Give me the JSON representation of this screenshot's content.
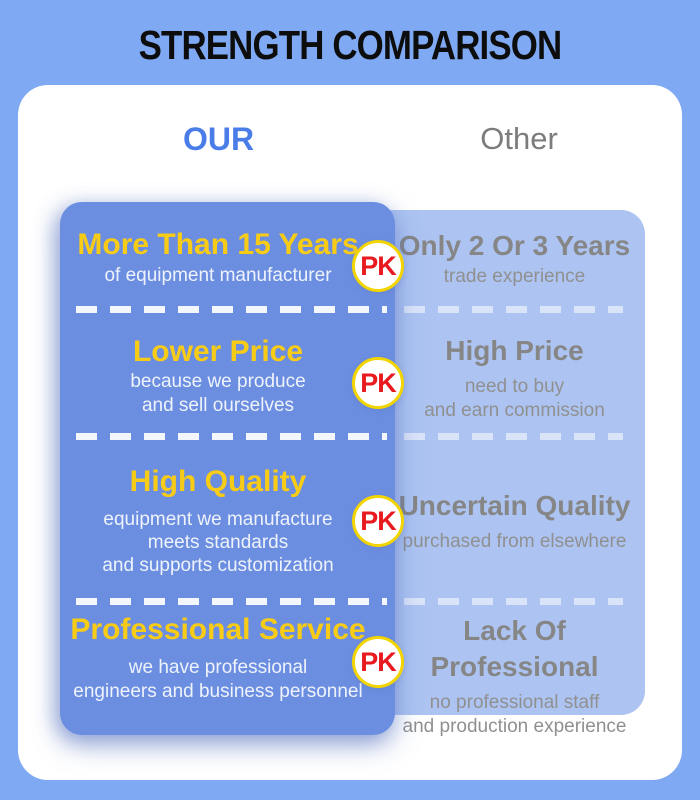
{
  "header": {
    "title": "STRENGTH COMPARISON"
  },
  "columns": {
    "our_label": "OUR",
    "other_label": "Other"
  },
  "colors": {
    "background": "#7fa9f3",
    "card": "#ffffff",
    "our_panel": "#6c8ee1",
    "other_panel": "#adc4f2",
    "our_header_text": "#4a7de8",
    "other_header_text": "#7c7c7c",
    "our_title_yellow": "#f8cc16",
    "our_sub_white": "#eef3fb",
    "other_text_gray": "#8a8a8a",
    "pk_text_red": "#e8191f",
    "pk_ring_yellow": "#f2d500"
  },
  "rows": [
    {
      "pk": "PK",
      "our_title": "More Than 15 Years",
      "our_lines": [
        "of equipment manufacturer"
      ],
      "other_title": "Only 2 Or 3 Years",
      "other_lines": [
        "trade experience"
      ]
    },
    {
      "pk": "PK",
      "our_title": "Lower Price",
      "our_lines": [
        "because we produce",
        "and sell ourselves"
      ],
      "other_title": "High Price",
      "other_lines": [
        "need to buy",
        "and earn commission"
      ]
    },
    {
      "pk": "PK",
      "our_title": "High Quality",
      "our_lines": [
        "equipment we manufacture",
        "meets standards",
        "and supports customization"
      ],
      "other_title": "Uncertain Quality",
      "other_lines": [
        "purchased from elsewhere"
      ]
    },
    {
      "pk": "PK",
      "our_title": "Professional Service",
      "our_lines": [
        "we have professional",
        "engineers and business personnel"
      ],
      "other_title": "Lack Of Professional",
      "other_lines": [
        "no professional staff",
        "and production experience"
      ]
    }
  ]
}
